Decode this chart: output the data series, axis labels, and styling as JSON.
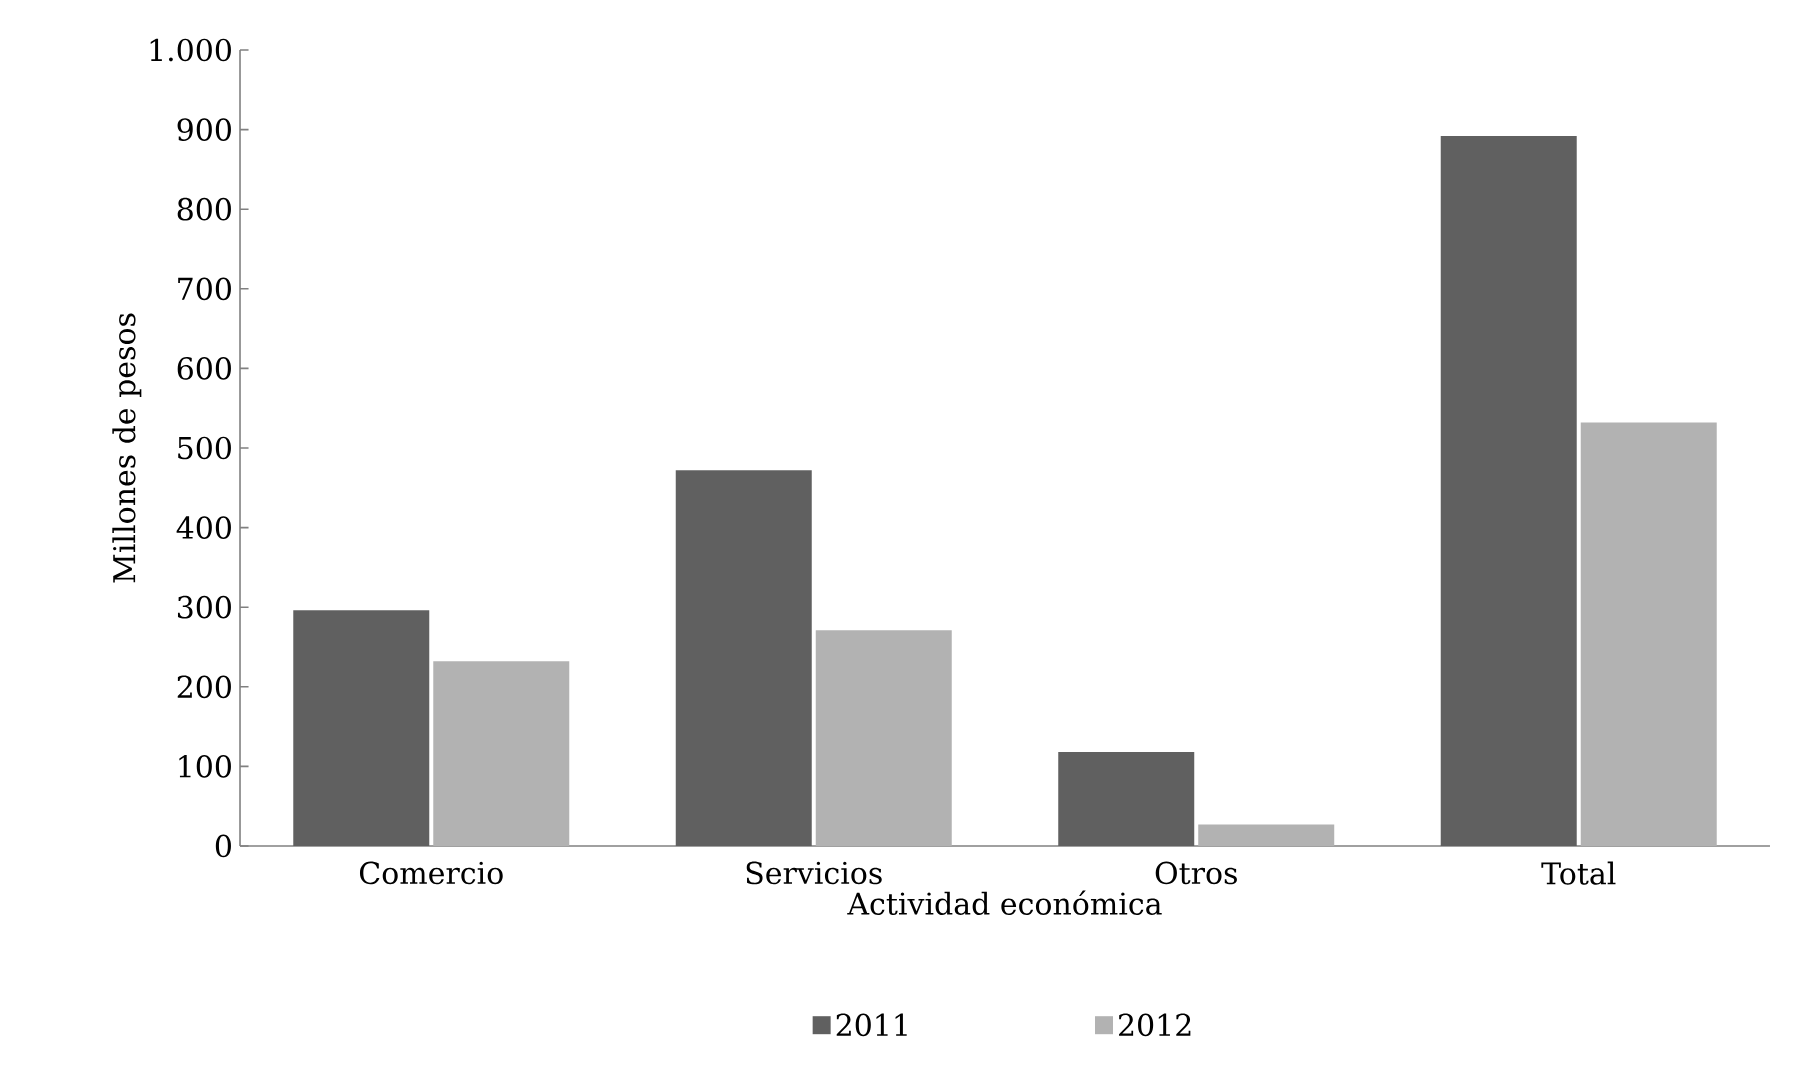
{
  "chart_data": {
    "type": "bar",
    "xlabel": "Actividad económica",
    "ylabel": "Millones de pesos",
    "categories": [
      "Comercio",
      "Servicios",
      "Otros",
      "Total"
    ],
    "series": [
      {
        "name": "2011",
        "color": "#606060",
        "values": [
          296,
          472,
          118,
          892
        ]
      },
      {
        "name": "2012",
        "color": "#b2b2b2",
        "values": [
          232,
          271,
          27,
          532
        ]
      }
    ],
    "ylim": [
      0,
      1000
    ],
    "yticks": [
      0,
      100,
      200,
      300,
      400,
      500,
      600,
      700,
      800,
      900,
      {
        "value": 1000,
        "label": "1.000"
      }
    ],
    "legend": "bottom",
    "grid": false
  }
}
